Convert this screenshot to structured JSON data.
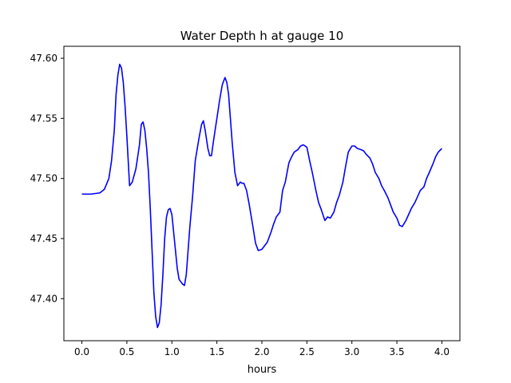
{
  "chart_data": {
    "type": "line",
    "title": "Water Depth h at gauge 10",
    "xlabel": "hours",
    "ylabel": "",
    "xlim": [
      -0.2,
      4.2
    ],
    "ylim": [
      47.365,
      47.61
    ],
    "xticks": [
      0.0,
      0.5,
      1.0,
      1.5,
      2.0,
      2.5,
      3.0,
      3.5,
      4.0
    ],
    "xtick_labels": [
      "0.0",
      "0.5",
      "1.0",
      "1.5",
      "2.0",
      "2.5",
      "3.0",
      "3.5",
      "4.0"
    ],
    "yticks": [
      47.4,
      47.45,
      47.5,
      47.55,
      47.6
    ],
    "ytick_labels": [
      "47.40",
      "47.45",
      "47.50",
      "47.55",
      "47.60"
    ],
    "grid": false,
    "legend": "none",
    "series": [
      {
        "color": "#0000ff",
        "x": [
          0.0,
          0.1,
          0.2,
          0.25,
          0.3,
          0.33,
          0.36,
          0.38,
          0.4,
          0.42,
          0.44,
          0.46,
          0.48,
          0.5,
          0.53,
          0.56,
          0.6,
          0.62,
          0.64,
          0.66,
          0.68,
          0.7,
          0.72,
          0.74,
          0.76,
          0.78,
          0.8,
          0.82,
          0.84,
          0.86,
          0.88,
          0.9,
          0.92,
          0.94,
          0.96,
          0.98,
          1.0,
          1.02,
          1.04,
          1.06,
          1.08,
          1.1,
          1.12,
          1.14,
          1.16,
          1.18,
          1.2,
          1.23,
          1.26,
          1.3,
          1.33,
          1.35,
          1.37,
          1.4,
          1.42,
          1.44,
          1.46,
          1.48,
          1.5,
          1.53,
          1.56,
          1.59,
          1.61,
          1.63,
          1.65,
          1.67,
          1.7,
          1.73,
          1.76,
          1.78,
          1.8,
          1.83,
          1.86,
          1.9,
          1.93,
          1.96,
          2.0,
          2.03,
          2.06,
          2.1,
          2.13,
          2.16,
          2.2,
          2.23,
          2.26,
          2.3,
          2.33,
          2.36,
          2.4,
          2.43,
          2.46,
          2.5,
          2.53,
          2.56,
          2.6,
          2.63,
          2.66,
          2.7,
          2.73,
          2.76,
          2.8,
          2.83,
          2.86,
          2.9,
          2.93,
          2.96,
          3.0,
          3.03,
          3.06,
          3.1,
          3.13,
          3.16,
          3.2,
          3.23,
          3.26,
          3.3,
          3.33,
          3.36,
          3.4,
          3.43,
          3.46,
          3.5,
          3.53,
          3.56,
          3.6,
          3.63,
          3.66,
          3.7,
          3.73,
          3.76,
          3.8,
          3.83,
          3.86,
          3.9,
          3.93,
          3.96,
          4.0
        ],
        "y": [
          47.487,
          47.487,
          47.488,
          47.491,
          47.5,
          47.515,
          47.54,
          47.57,
          47.586,
          47.595,
          47.592,
          47.58,
          47.56,
          47.535,
          47.494,
          47.497,
          47.508,
          47.518,
          47.528,
          47.545,
          47.547,
          47.54,
          47.525,
          47.505,
          47.475,
          47.44,
          47.405,
          47.385,
          47.376,
          47.38,
          47.395,
          47.42,
          47.45,
          47.468,
          47.474,
          47.475,
          47.47,
          47.455,
          47.44,
          47.425,
          47.416,
          47.414,
          47.412,
          47.411,
          47.42,
          47.44,
          47.46,
          47.485,
          47.515,
          47.533,
          47.545,
          47.548,
          47.54,
          47.525,
          47.519,
          47.519,
          47.53,
          47.54,
          47.55,
          47.565,
          47.578,
          47.584,
          47.58,
          47.57,
          47.55,
          47.53,
          47.505,
          47.494,
          47.497,
          47.496,
          47.496,
          47.49,
          47.478,
          47.46,
          47.446,
          47.44,
          47.441,
          47.444,
          47.447,
          47.455,
          47.462,
          47.468,
          47.472,
          47.49,
          47.497,
          47.513,
          47.518,
          47.522,
          47.524,
          47.527,
          47.528,
          47.526,
          47.515,
          47.505,
          47.49,
          47.48,
          47.474,
          47.465,
          47.468,
          47.467,
          47.472,
          47.48,
          47.486,
          47.497,
          47.51,
          47.522,
          47.527,
          47.527,
          47.525,
          47.524,
          47.523,
          47.52,
          47.517,
          47.512,
          47.505,
          47.5,
          47.494,
          47.49,
          47.484,
          47.478,
          47.472,
          47.467,
          47.461,
          47.46,
          47.465,
          47.47,
          47.475,
          47.48,
          47.485,
          47.49,
          47.493,
          47.5,
          47.505,
          47.512,
          47.518,
          47.522,
          47.525
        ]
      }
    ]
  }
}
